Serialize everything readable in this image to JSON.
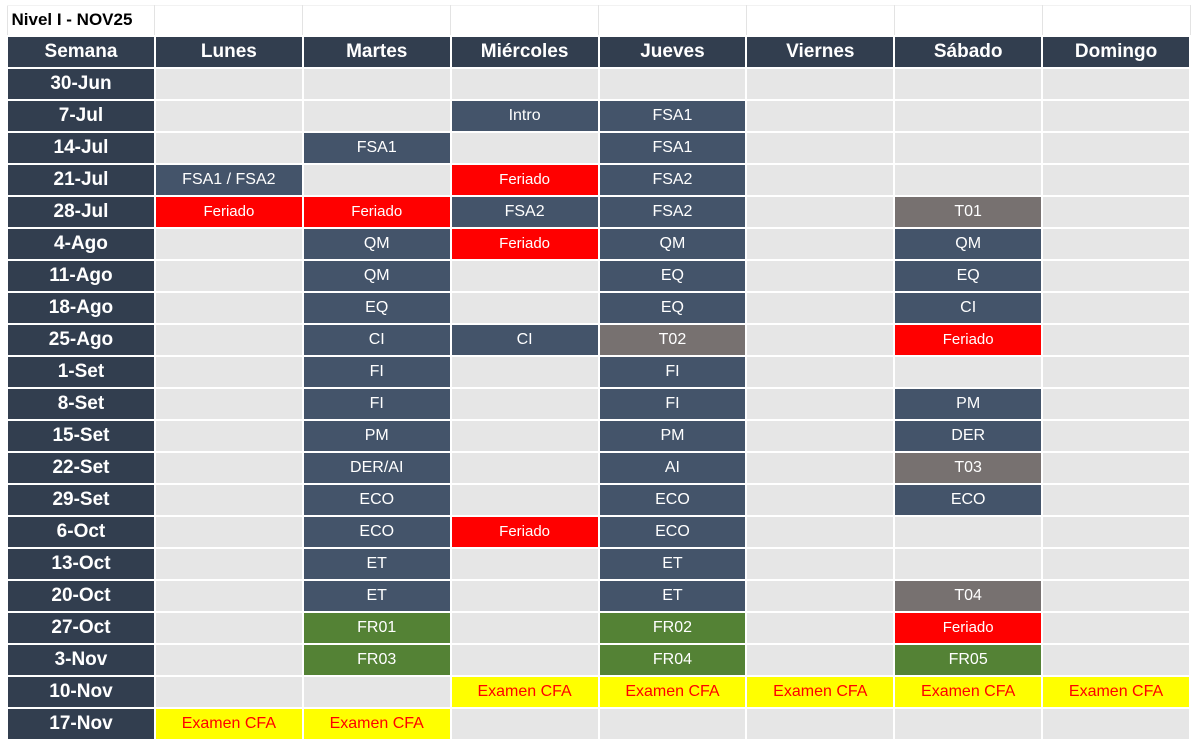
{
  "title": "Nivel I - NOV25",
  "headers": [
    "Semana",
    "Lunes",
    "Martes",
    "Miércoles",
    "Jueves",
    "Viernes",
    "Sábado",
    "Domingo"
  ],
  "colors": {
    "header_bg": "#323e4f",
    "course_bg": "#44546a",
    "holiday_bg": "#ff0000",
    "test_bg": "#777170",
    "final_review_bg": "#548235",
    "exam_bg": "#ffff00",
    "exam_text": "#ff0000",
    "empty_bg": "#e6e6e6"
  },
  "rows": [
    {
      "week": "30-Jun",
      "cells": [
        {
          "text": "",
          "style": "empty"
        },
        {
          "text": "",
          "style": "empty"
        },
        {
          "text": "",
          "style": "empty"
        },
        {
          "text": "",
          "style": "empty"
        },
        {
          "text": "",
          "style": "empty"
        },
        {
          "text": "",
          "style": "empty"
        },
        {
          "text": "",
          "style": "empty"
        }
      ]
    },
    {
      "week": "7-Jul",
      "cells": [
        {
          "text": "",
          "style": "empty"
        },
        {
          "text": "",
          "style": "empty"
        },
        {
          "text": "Intro",
          "style": "blue"
        },
        {
          "text": "FSA1",
          "style": "blue"
        },
        {
          "text": "",
          "style": "empty"
        },
        {
          "text": "",
          "style": "empty"
        },
        {
          "text": "",
          "style": "empty"
        }
      ]
    },
    {
      "week": "14-Jul",
      "cells": [
        {
          "text": "",
          "style": "empty"
        },
        {
          "text": "FSA1",
          "style": "blue"
        },
        {
          "text": "",
          "style": "empty"
        },
        {
          "text": "FSA1",
          "style": "blue"
        },
        {
          "text": "",
          "style": "empty"
        },
        {
          "text": "",
          "style": "empty"
        },
        {
          "text": "",
          "style": "empty"
        }
      ]
    },
    {
      "week": "21-Jul",
      "cells": [
        {
          "text": "FSA1 / FSA2",
          "style": "blue"
        },
        {
          "text": "",
          "style": "empty"
        },
        {
          "text": "Feriado",
          "style": "red"
        },
        {
          "text": "FSA2",
          "style": "blue"
        },
        {
          "text": "",
          "style": "empty"
        },
        {
          "text": "",
          "style": "empty"
        },
        {
          "text": "",
          "style": "empty"
        }
      ]
    },
    {
      "week": "28-Jul",
      "cells": [
        {
          "text": "Feriado",
          "style": "red"
        },
        {
          "text": "Feriado",
          "style": "red"
        },
        {
          "text": "FSA2",
          "style": "blue"
        },
        {
          "text": "FSA2",
          "style": "blue"
        },
        {
          "text": "",
          "style": "empty"
        },
        {
          "text": "T01",
          "style": "gray"
        },
        {
          "text": "",
          "style": "empty"
        }
      ]
    },
    {
      "week": "4-Ago",
      "cells": [
        {
          "text": "",
          "style": "empty"
        },
        {
          "text": "QM",
          "style": "blue"
        },
        {
          "text": "Feriado",
          "style": "red"
        },
        {
          "text": "QM",
          "style": "blue"
        },
        {
          "text": "",
          "style": "empty"
        },
        {
          "text": "QM",
          "style": "blue"
        },
        {
          "text": "",
          "style": "empty"
        }
      ]
    },
    {
      "week": "11-Ago",
      "cells": [
        {
          "text": "",
          "style": "empty"
        },
        {
          "text": "QM",
          "style": "blue"
        },
        {
          "text": "",
          "style": "empty"
        },
        {
          "text": "EQ",
          "style": "blue"
        },
        {
          "text": "",
          "style": "empty"
        },
        {
          "text": "EQ",
          "style": "blue"
        },
        {
          "text": "",
          "style": "empty"
        }
      ]
    },
    {
      "week": "18-Ago",
      "cells": [
        {
          "text": "",
          "style": "empty"
        },
        {
          "text": "EQ",
          "style": "blue"
        },
        {
          "text": "",
          "style": "empty"
        },
        {
          "text": "EQ",
          "style": "blue"
        },
        {
          "text": "",
          "style": "empty"
        },
        {
          "text": "CI",
          "style": "blue"
        },
        {
          "text": "",
          "style": "empty"
        }
      ]
    },
    {
      "week": "25-Ago",
      "cells": [
        {
          "text": "",
          "style": "empty"
        },
        {
          "text": "CI",
          "style": "blue"
        },
        {
          "text": "CI",
          "style": "blue"
        },
        {
          "text": "T02",
          "style": "gray"
        },
        {
          "text": "",
          "style": "empty"
        },
        {
          "text": "Feriado",
          "style": "red"
        },
        {
          "text": "",
          "style": "empty"
        }
      ]
    },
    {
      "week": "1-Set",
      "cells": [
        {
          "text": "",
          "style": "empty"
        },
        {
          "text": "FI",
          "style": "blue"
        },
        {
          "text": "",
          "style": "empty"
        },
        {
          "text": "FI",
          "style": "blue"
        },
        {
          "text": "",
          "style": "empty"
        },
        {
          "text": "",
          "style": "empty"
        },
        {
          "text": "",
          "style": "empty"
        }
      ]
    },
    {
      "week": "8-Set",
      "cells": [
        {
          "text": "",
          "style": "empty"
        },
        {
          "text": "FI",
          "style": "blue"
        },
        {
          "text": "",
          "style": "empty"
        },
        {
          "text": "FI",
          "style": "blue"
        },
        {
          "text": "",
          "style": "empty"
        },
        {
          "text": "PM",
          "style": "blue"
        },
        {
          "text": "",
          "style": "empty"
        }
      ]
    },
    {
      "week": "15-Set",
      "cells": [
        {
          "text": "",
          "style": "empty"
        },
        {
          "text": "PM",
          "style": "blue"
        },
        {
          "text": "",
          "style": "empty"
        },
        {
          "text": "PM",
          "style": "blue"
        },
        {
          "text": "",
          "style": "empty"
        },
        {
          "text": "DER",
          "style": "blue"
        },
        {
          "text": "",
          "style": "empty"
        }
      ]
    },
    {
      "week": "22-Set",
      "cells": [
        {
          "text": "",
          "style": "empty"
        },
        {
          "text": "DER/AI",
          "style": "blue"
        },
        {
          "text": "",
          "style": "empty"
        },
        {
          "text": "AI",
          "style": "blue"
        },
        {
          "text": "",
          "style": "empty"
        },
        {
          "text": "T03",
          "style": "gray"
        },
        {
          "text": "",
          "style": "empty"
        }
      ]
    },
    {
      "week": "29-Set",
      "cells": [
        {
          "text": "",
          "style": "empty"
        },
        {
          "text": "ECO",
          "style": "blue"
        },
        {
          "text": "",
          "style": "empty"
        },
        {
          "text": "ECO",
          "style": "blue"
        },
        {
          "text": "",
          "style": "empty"
        },
        {
          "text": "ECO",
          "style": "blue"
        },
        {
          "text": "",
          "style": "empty"
        }
      ]
    },
    {
      "week": "6-Oct",
      "cells": [
        {
          "text": "",
          "style": "empty"
        },
        {
          "text": "ECO",
          "style": "blue"
        },
        {
          "text": "Feriado",
          "style": "red"
        },
        {
          "text": "ECO",
          "style": "blue"
        },
        {
          "text": "",
          "style": "empty"
        },
        {
          "text": "",
          "style": "empty"
        },
        {
          "text": "",
          "style": "empty"
        }
      ]
    },
    {
      "week": "13-Oct",
      "cells": [
        {
          "text": "",
          "style": "empty"
        },
        {
          "text": "ET",
          "style": "blue"
        },
        {
          "text": "",
          "style": "empty"
        },
        {
          "text": "ET",
          "style": "blue"
        },
        {
          "text": "",
          "style": "empty"
        },
        {
          "text": "",
          "style": "empty"
        },
        {
          "text": "",
          "style": "empty"
        }
      ]
    },
    {
      "week": "20-Oct",
      "cells": [
        {
          "text": "",
          "style": "empty"
        },
        {
          "text": "ET",
          "style": "blue"
        },
        {
          "text": "",
          "style": "empty"
        },
        {
          "text": "ET",
          "style": "blue"
        },
        {
          "text": "",
          "style": "empty"
        },
        {
          "text": "T04",
          "style": "gray"
        },
        {
          "text": "",
          "style": "empty"
        }
      ]
    },
    {
      "week": "27-Oct",
      "cells": [
        {
          "text": "",
          "style": "empty"
        },
        {
          "text": "FR01",
          "style": "green"
        },
        {
          "text": "",
          "style": "empty"
        },
        {
          "text": "FR02",
          "style": "green"
        },
        {
          "text": "",
          "style": "empty"
        },
        {
          "text": "Feriado",
          "style": "red"
        },
        {
          "text": "",
          "style": "empty"
        }
      ]
    },
    {
      "week": "3-Nov",
      "cells": [
        {
          "text": "",
          "style": "empty"
        },
        {
          "text": "FR03",
          "style": "green"
        },
        {
          "text": "",
          "style": "empty"
        },
        {
          "text": "FR04",
          "style": "green"
        },
        {
          "text": "",
          "style": "empty"
        },
        {
          "text": "FR05",
          "style": "green"
        },
        {
          "text": "",
          "style": "empty"
        }
      ]
    },
    {
      "week": "10-Nov",
      "cells": [
        {
          "text": "",
          "style": "empty"
        },
        {
          "text": "",
          "style": "empty"
        },
        {
          "text": "Examen CFA",
          "style": "yellow"
        },
        {
          "text": "Examen CFA",
          "style": "yellow"
        },
        {
          "text": "Examen CFA",
          "style": "yellow"
        },
        {
          "text": "Examen CFA",
          "style": "yellow"
        },
        {
          "text": "Examen CFA",
          "style": "yellow"
        }
      ]
    },
    {
      "week": "17-Nov",
      "cells": [
        {
          "text": "Examen CFA",
          "style": "yellow"
        },
        {
          "text": "Examen CFA",
          "style": "yellow"
        },
        {
          "text": "",
          "style": "empty"
        },
        {
          "text": "",
          "style": "empty"
        },
        {
          "text": "",
          "style": "empty"
        },
        {
          "text": "",
          "style": "empty"
        },
        {
          "text": "",
          "style": "empty"
        }
      ]
    }
  ]
}
